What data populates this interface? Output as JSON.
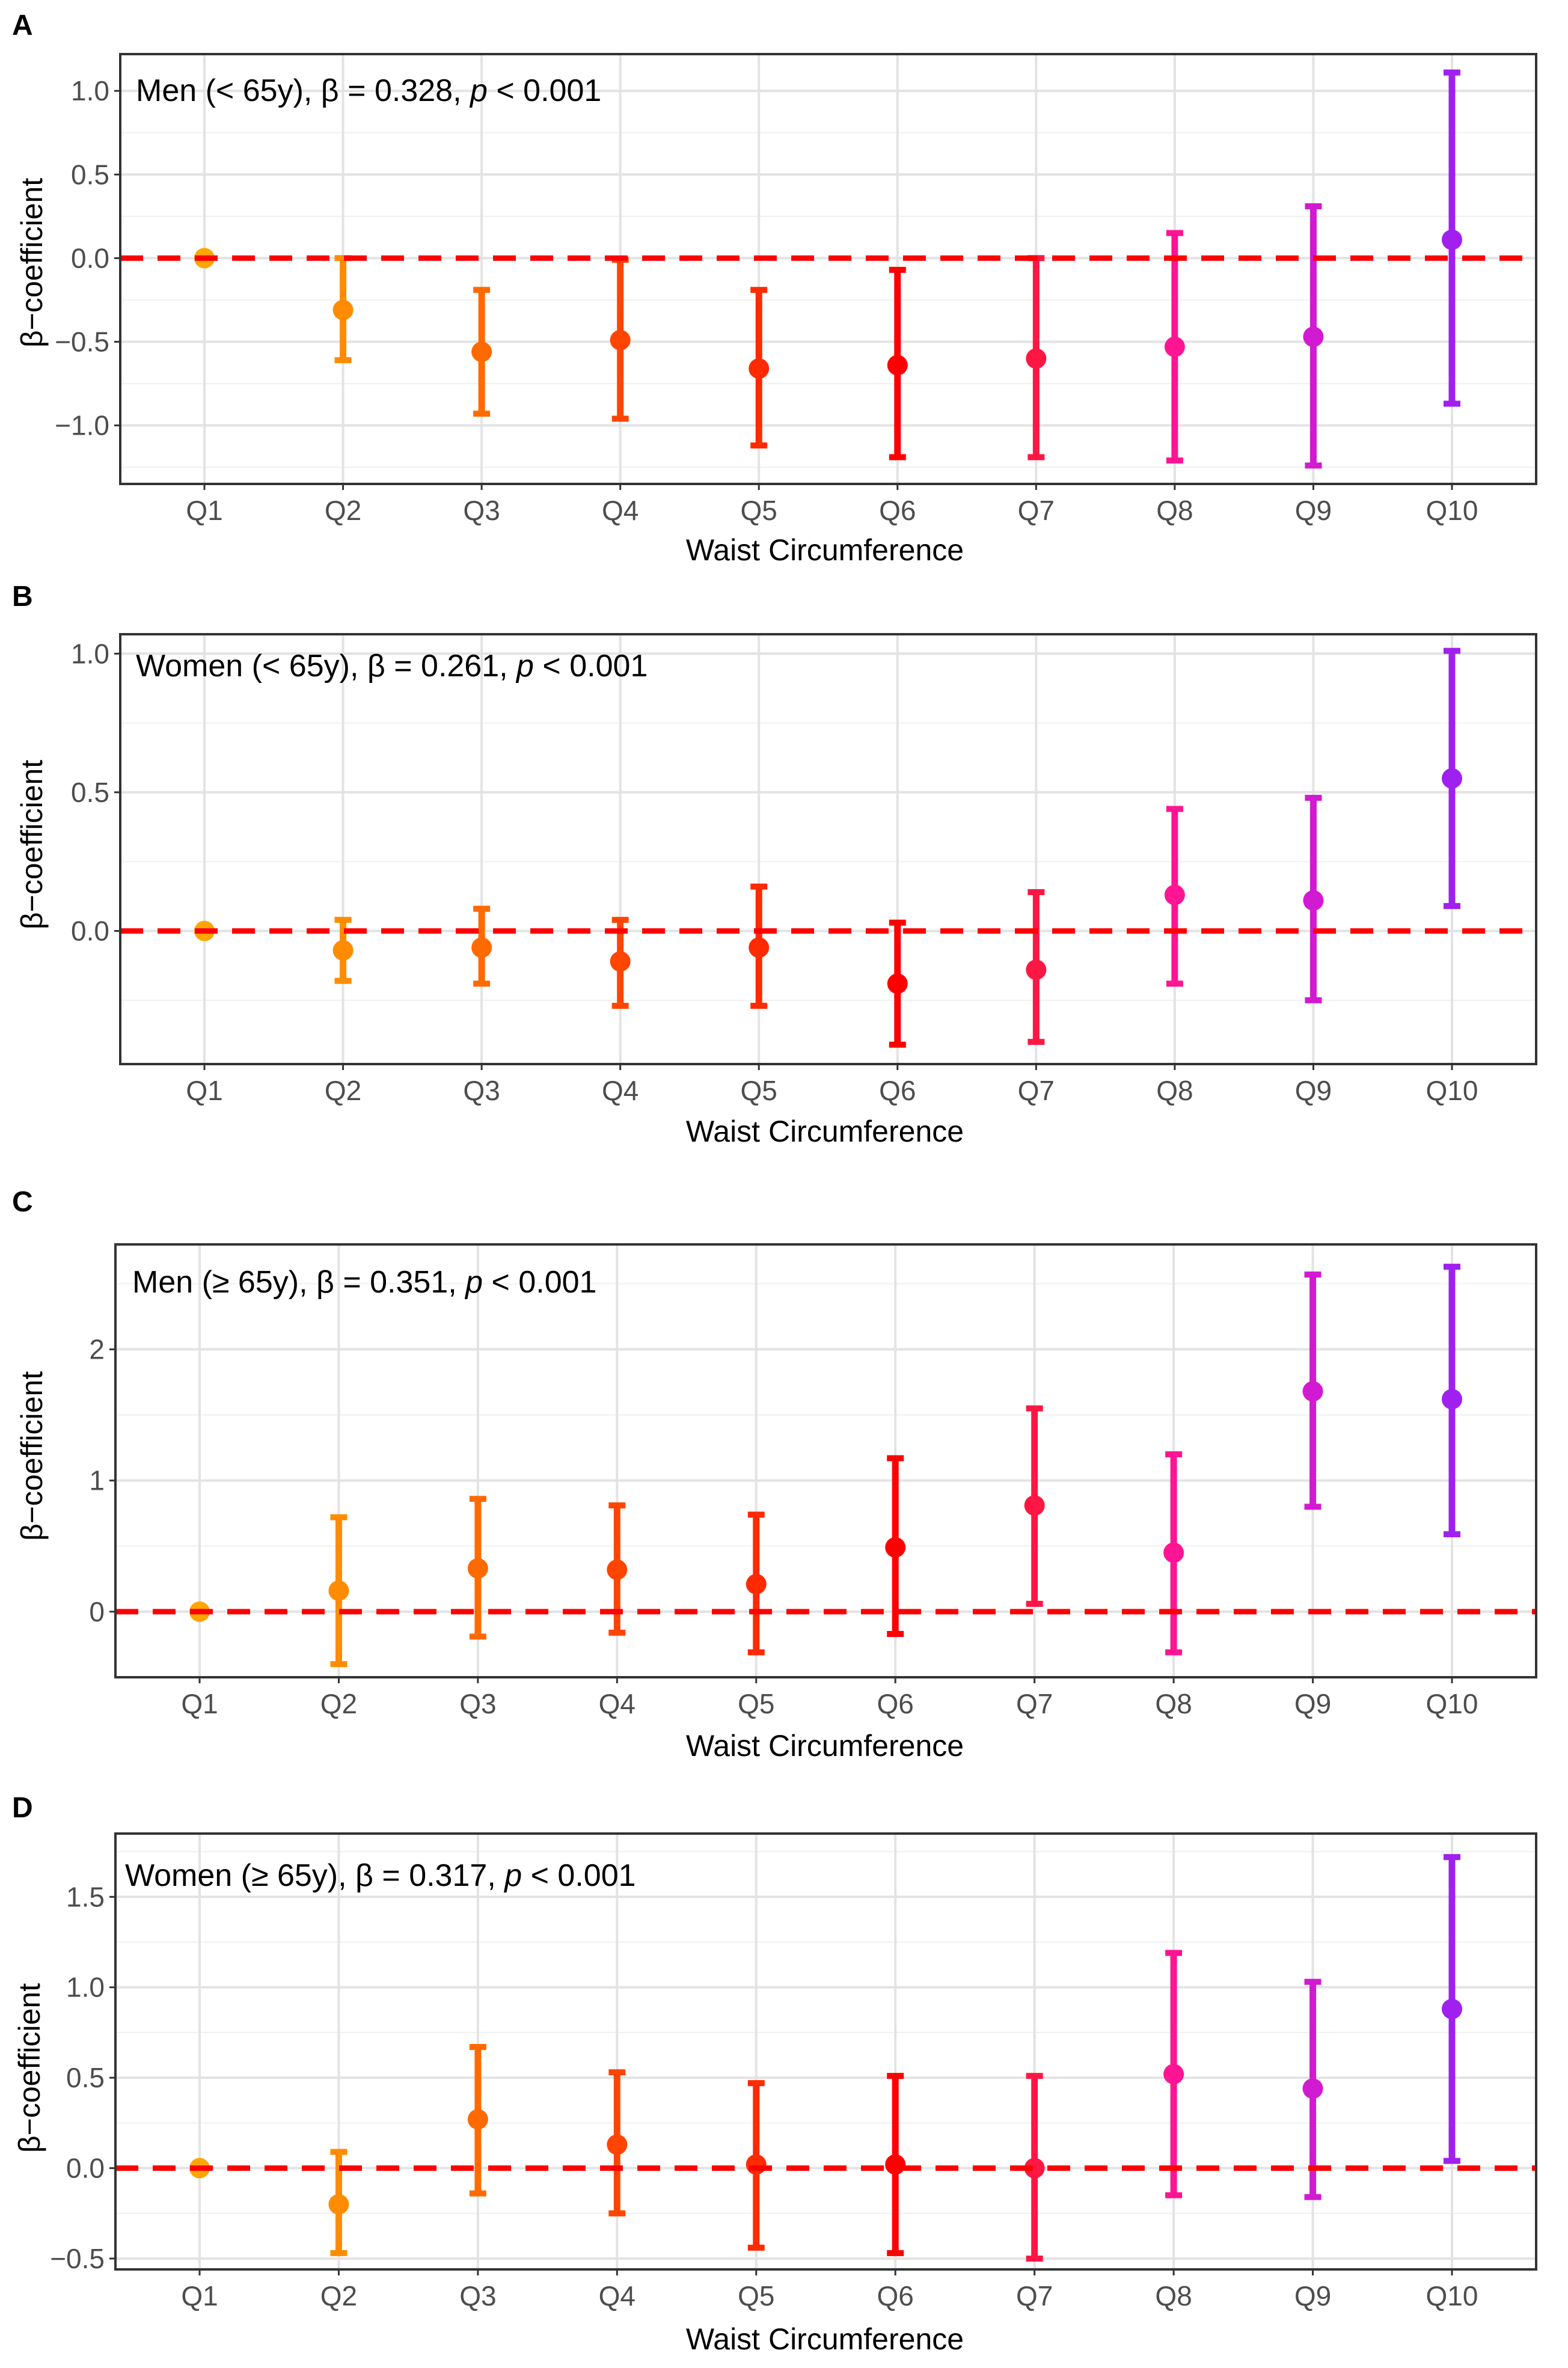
{
  "chart_data": [
    {
      "type": "errorbar",
      "panel": "A",
      "subgroup": "Men (< 65y)",
      "beta_text": ", β = 0.328, ",
      "p_symbol": "p",
      "p_text": " < 0.001",
      "title": "Men (< 65y), β = 0.328, p < 0.001",
      "xlabel": "Waist Circumference",
      "ylabel": "β−coefficient",
      "categories": [
        "Q1",
        "Q2",
        "Q3",
        "Q4",
        "Q5",
        "Q6",
        "Q7",
        "Q8",
        "Q9",
        "Q10"
      ],
      "estimates": [
        0.0,
        -0.31,
        -0.56,
        -0.49,
        -0.66,
        -0.64,
        -0.6,
        -0.53,
        -0.47,
        0.11
      ],
      "lower": [
        0.0,
        -0.61,
        -0.93,
        -0.96,
        -1.12,
        -1.19,
        -1.19,
        -1.21,
        -1.24,
        -0.87
      ],
      "upper": [
        0.0,
        0.0,
        -0.19,
        -0.01,
        -0.19,
        -0.07,
        0.0,
        0.15,
        0.31,
        1.11
      ],
      "yticks": [
        1.0,
        0.5,
        0.0,
        -0.5,
        -1.0
      ],
      "ytick_labels": [
        "1.0",
        "0.5",
        "0.0",
        "−0.5",
        "−1.0"
      ],
      "ylim": [
        -1.35,
        1.22
      ],
      "reference_line": 0
    },
    {
      "type": "errorbar",
      "panel": "B",
      "subgroup": "Women (< 65y)",
      "beta_text": ", β = 0.261, ",
      "p_symbol": "p",
      "p_text": " < 0.001",
      "title": "Women (< 65y), β = 0.261, p < 0.001",
      "xlabel": "Waist Circumference",
      "ylabel": "β−coefficient",
      "categories": [
        "Q1",
        "Q2",
        "Q3",
        "Q4",
        "Q5",
        "Q6",
        "Q7",
        "Q8",
        "Q9",
        "Q10"
      ],
      "estimates": [
        0.0,
        -0.07,
        -0.06,
        -0.11,
        -0.06,
        -0.19,
        -0.14,
        0.13,
        0.11,
        0.55
      ],
      "lower": [
        0.0,
        -0.18,
        -0.19,
        -0.27,
        -0.27,
        -0.41,
        -0.4,
        -0.19,
        -0.25,
        0.09
      ],
      "upper": [
        0.0,
        0.04,
        0.08,
        0.04,
        0.16,
        0.03,
        0.14,
        0.44,
        0.48,
        1.01
      ],
      "yticks": [
        1.0,
        0.5,
        0.0
      ],
      "ytick_labels": [
        "1.0",
        "0.5",
        "0.0"
      ],
      "ylim": [
        -0.48,
        1.07
      ],
      "reference_line": 0
    },
    {
      "type": "errorbar",
      "panel": "C",
      "subgroup": "Men (≥ 65y)",
      "beta_text": ", β = 0.351, ",
      "p_symbol": "p",
      "p_text": " < 0.001",
      "title": "Men (≥ 65y), β = 0.351, p < 0.001",
      "xlabel": "Waist Circumference",
      "ylabel": "β−coefficient",
      "categories": [
        "Q1",
        "Q2",
        "Q3",
        "Q4",
        "Q5",
        "Q6",
        "Q7",
        "Q8",
        "Q9",
        "Q10"
      ],
      "estimates": [
        0.0,
        0.16,
        0.33,
        0.32,
        0.21,
        0.49,
        0.81,
        0.45,
        1.68,
        1.62
      ],
      "lower": [
        0.0,
        -0.4,
        -0.19,
        -0.16,
        -0.31,
        -0.17,
        0.06,
        -0.31,
        0.8,
        0.59
      ],
      "upper": [
        0.0,
        0.72,
        0.86,
        0.81,
        0.74,
        1.17,
        1.55,
        1.2,
        2.57,
        2.63
      ],
      "yticks": [
        2,
        1,
        0
      ],
      "ytick_labels": [
        "2",
        "1",
        "0"
      ],
      "ylim": [
        -0.5,
        2.8
      ],
      "reference_line": 0
    },
    {
      "type": "errorbar",
      "panel": "D",
      "subgroup": "Women (≥ 65y)",
      "beta_text": ", β = 0.317, ",
      "p_symbol": "p",
      "p_text": " < 0.001",
      "title": "Women (≥ 65y), β = 0.317, p < 0.001",
      "xlabel": "Waist Circumference",
      "ylabel": "β−coefficient",
      "categories": [
        "Q1",
        "Q2",
        "Q3",
        "Q4",
        "Q5",
        "Q6",
        "Q7",
        "Q8",
        "Q9",
        "Q10"
      ],
      "estimates": [
        0.0,
        -0.2,
        0.27,
        0.13,
        0.02,
        0.02,
        0.0,
        0.52,
        0.44,
        0.88
      ],
      "lower": [
        0.0,
        -0.47,
        -0.14,
        -0.25,
        -0.44,
        -0.47,
        -0.5,
        -0.15,
        -0.16,
        0.04
      ],
      "upper": [
        0.0,
        0.09,
        0.67,
        0.53,
        0.47,
        0.51,
        0.51,
        1.19,
        1.03,
        1.72
      ],
      "yticks": [
        1.5,
        1.0,
        0.5,
        0.0,
        -0.5
      ],
      "ytick_labels": [
        "1.5",
        "1.0",
        "0.5",
        "0.0",
        "−0.5"
      ],
      "ylim": [
        -0.56,
        1.85
      ],
      "reference_line": 0
    }
  ],
  "colors": {
    "quantiles": [
      "#ffa500",
      "#ff8c00",
      "#ff6a00",
      "#ff4500",
      "#ff2a00",
      "#ff0000",
      "#ff1744",
      "#ff1493",
      "#d11ad1",
      "#a020f0"
    ],
    "reference": "#ff0000",
    "frame": "#333333",
    "grid": "#e3e3e3"
  }
}
